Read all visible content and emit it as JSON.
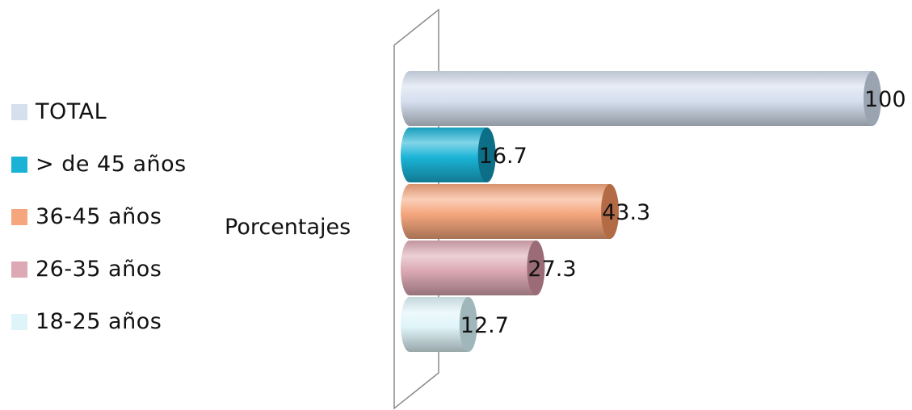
{
  "chart_data": {
    "type": "bar",
    "orientation": "horizontal",
    "style": "3d-cylinder",
    "category": "Porcentajes",
    "series": [
      {
        "name": "TOTAL",
        "value": 100,
        "color": "#d5dfee",
        "shade": "#9aa4b1"
      },
      {
        "name": "> de 45 años",
        "value": 16.7,
        "color": "#1ab3d6",
        "shade": "#0d6f87"
      },
      {
        "name": "36-45 años",
        "value": 43.3,
        "color": "#f5a67d",
        "shade": "#b36b45"
      },
      {
        "name": "26-35 años",
        "value": 27.3,
        "color": "#dca9b5",
        "shade": "#9b6c77"
      },
      {
        "name": "18-25 años",
        "value": 12.7,
        "color": "#dff4f9",
        "shade": "#9fb6bb"
      }
    ],
    "legend_position": "left",
    "grid": false,
    "xlim": [
      0,
      100
    ]
  }
}
